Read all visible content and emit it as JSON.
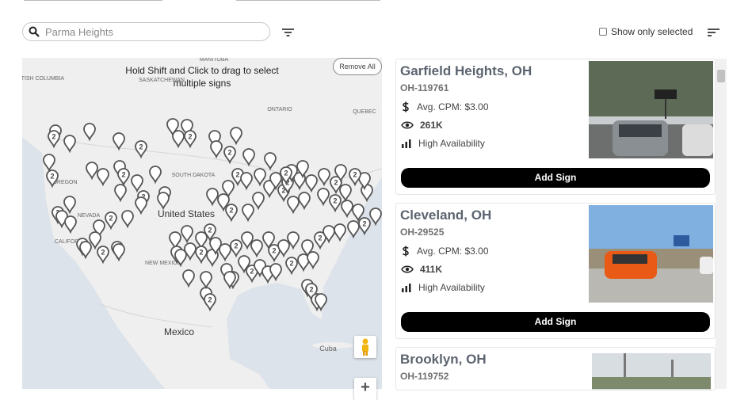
{
  "search": {
    "placeholder": "Parma Heights"
  },
  "show_only_selected": "Show only selected",
  "map": {
    "instruction": "Hold Shift and Click to drag to select multiple signs",
    "remove_all": "Remove All",
    "labels": [
      "BRITISH COLUMBIA",
      "MANITOBA",
      "SASKATCHEWAN",
      "ONTARIO",
      "QUEBEC",
      "OREGON",
      "SOUTH DAKOTA",
      "NEVADA",
      "United States",
      "CALIFORNIA",
      "NEW MEXICO",
      "Mexico",
      "Cuba"
    ],
    "cluster_label": "2",
    "zoom_in": "+"
  },
  "listings": [
    {
      "city": "Garfield Heights, OH",
      "id": "OH-119761",
      "cpm": "Avg. CPM: $3.00",
      "impressions": "261K",
      "availability": "High Availability",
      "button": "Add Sign"
    },
    {
      "city": "Cleveland, OH",
      "id": "OH-29525",
      "cpm": "Avg. CPM: $3.00",
      "impressions": "411K",
      "availability": "High Availability",
      "button": "Add Sign"
    },
    {
      "city": "Brooklyn, OH",
      "id": "OH-119752"
    }
  ]
}
